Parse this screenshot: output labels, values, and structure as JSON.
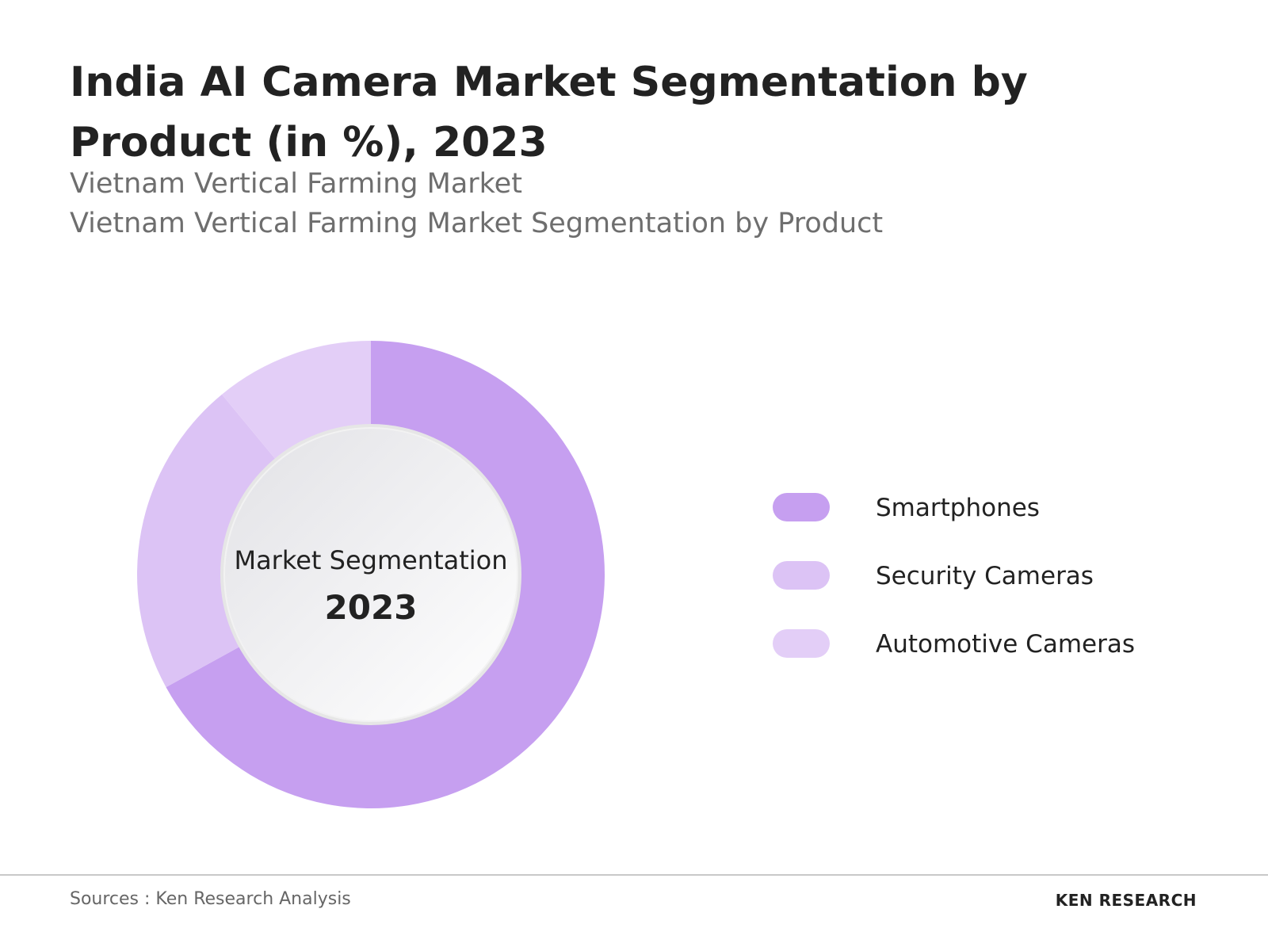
{
  "chart_data": {
    "type": "donut",
    "title": "India AI Camera Market Segmentation by Product (in %), 2023",
    "subtitle": [
      "Vietnam Vertical Farming Market",
      "Vietnam Vertical Farming Market Segmentation by Product"
    ],
    "center_label": "Market Segmentation",
    "center_year": "2023",
    "categories": [
      "Smartphones",
      "Security Cameras",
      "Automotive Cameras"
    ],
    "values": [
      67,
      22,
      11
    ],
    "colors": [
      "#c69ff0",
      "#dcc3f5",
      "#e3cef7"
    ],
    "legend": "right"
  },
  "footer": {
    "source": "Sources : Ken Research Analysis",
    "logo": "KEN RESEARCH"
  }
}
